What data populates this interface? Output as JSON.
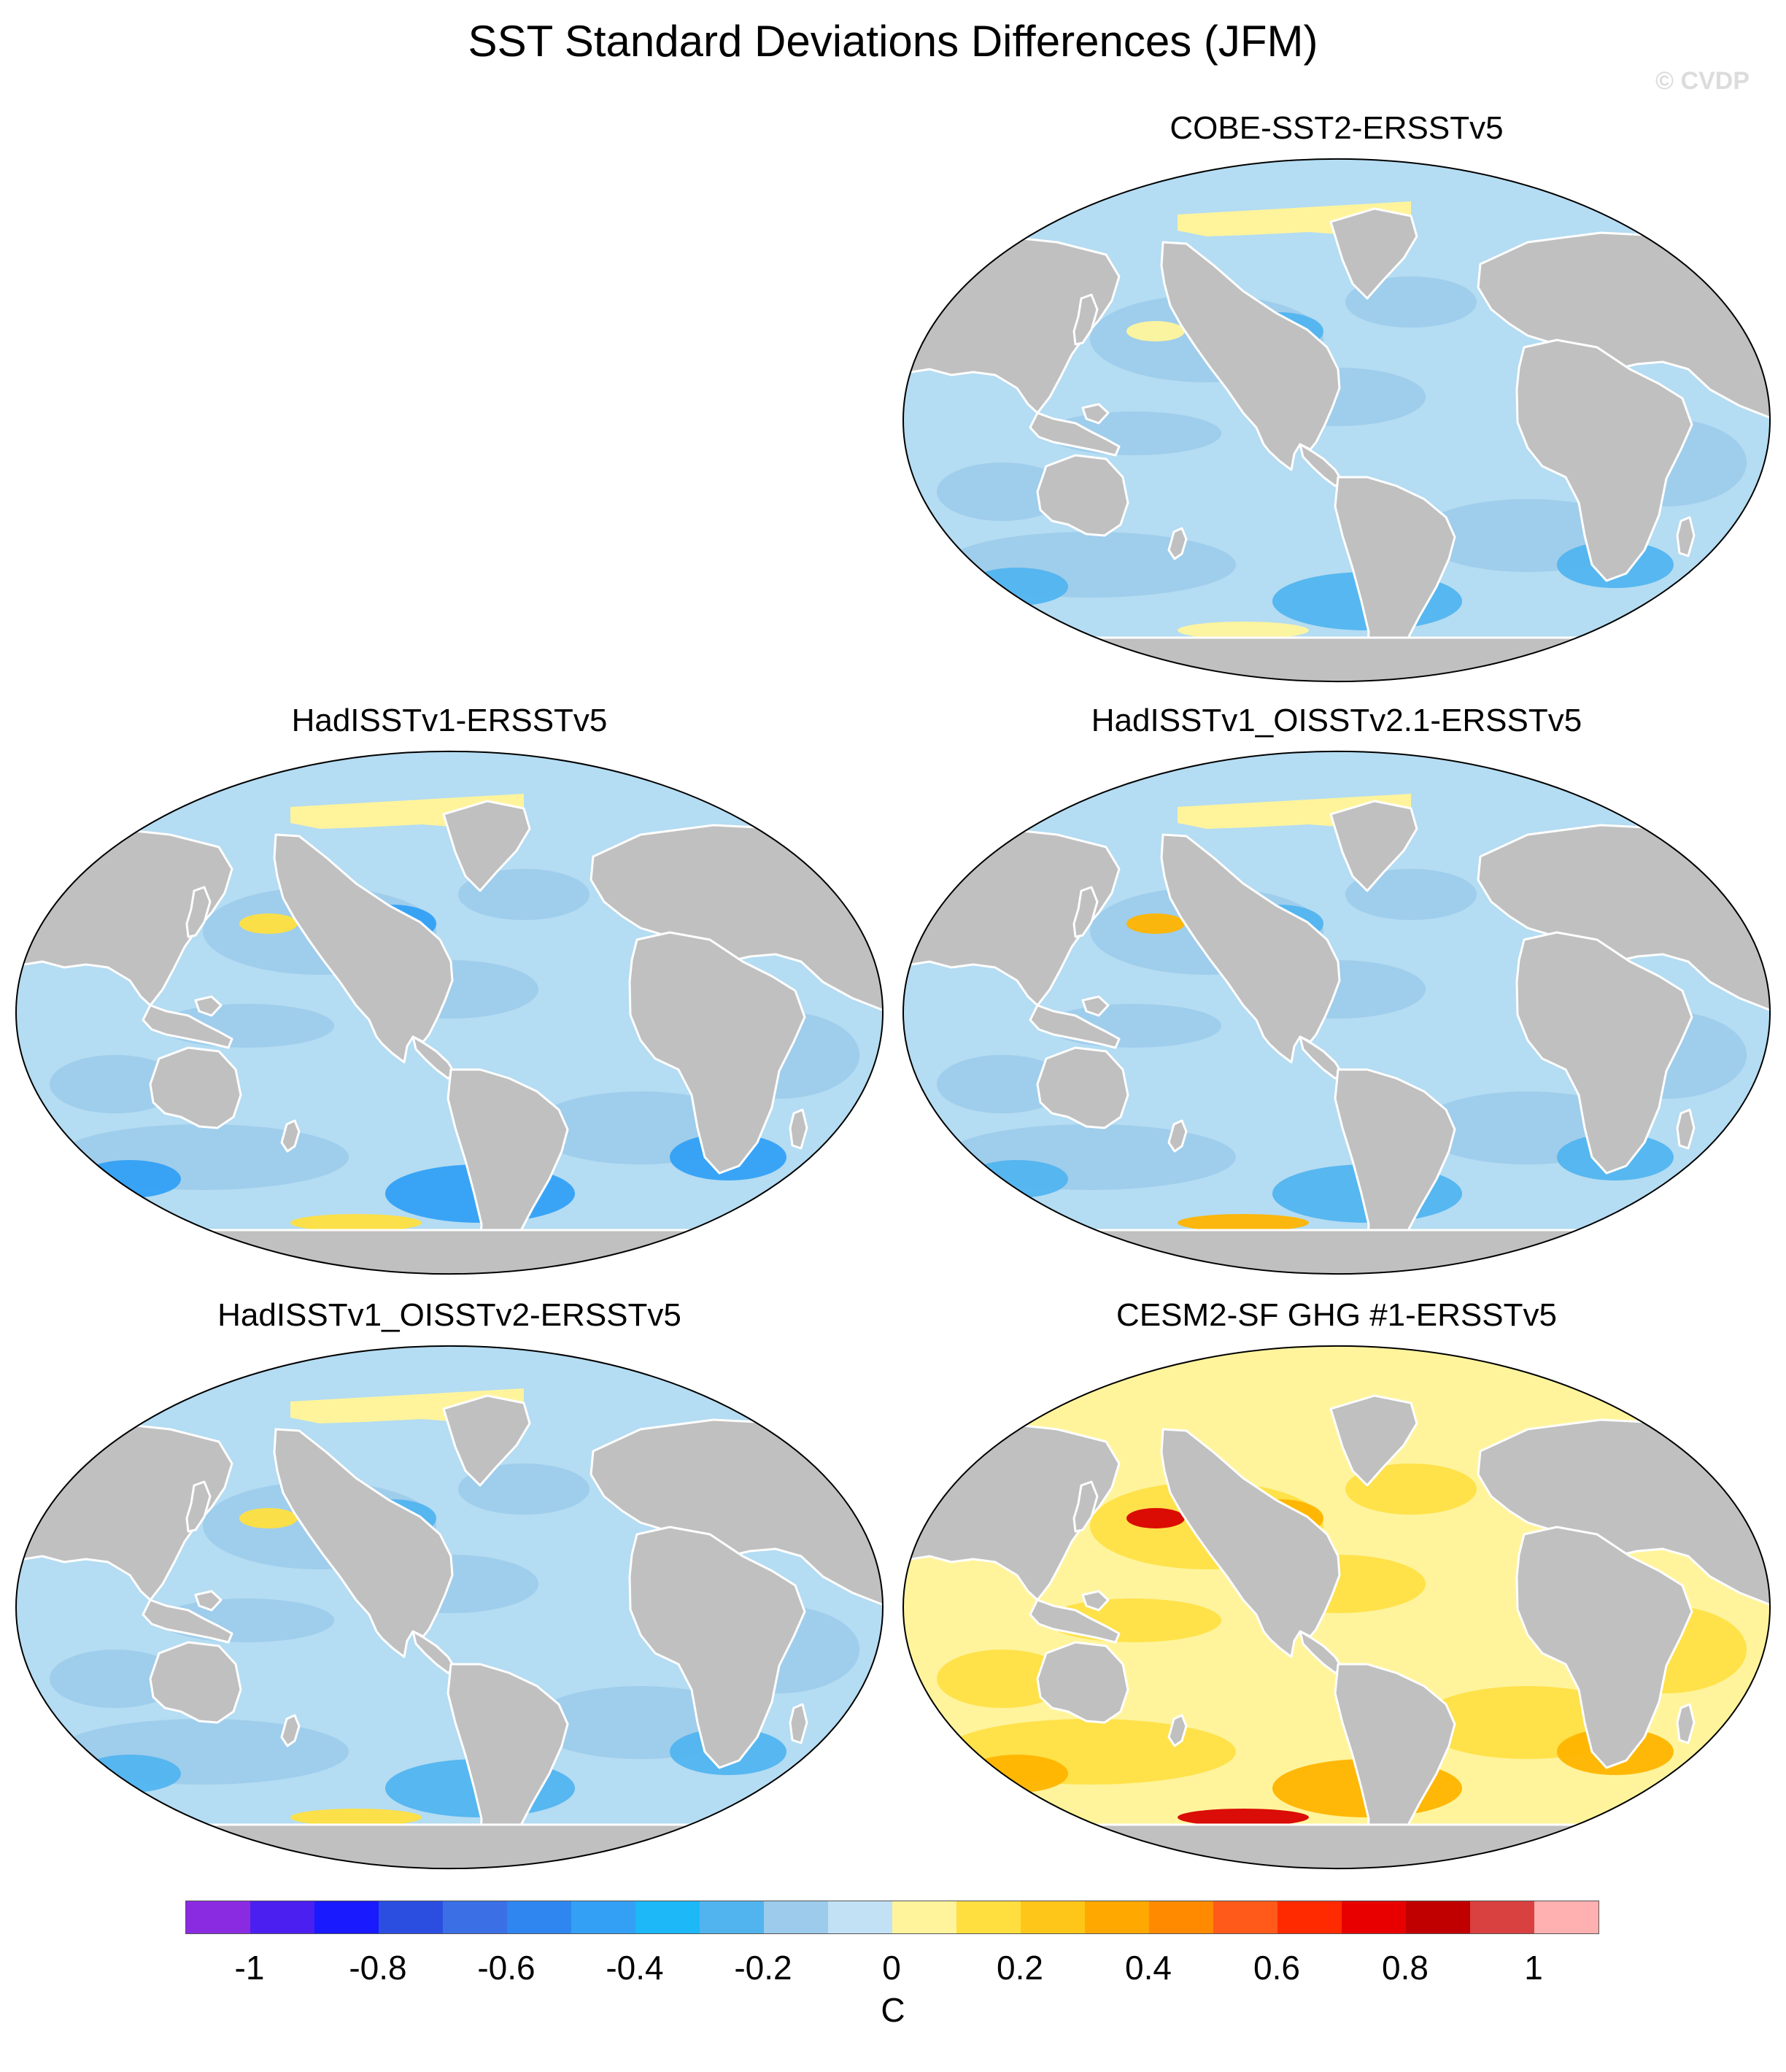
{
  "title": "SST Standard Deviations Differences (JFM)",
  "watermark": "© CVDP",
  "panels": [
    {
      "title": "COBE-SST2-ERSSTv5",
      "row": 0,
      "col": 1,
      "ocean": "#b4dcf2",
      "patch": "#9ccbeb",
      "blob": "#52b4ef",
      "warm": "#fff49c"
    },
    {
      "title": "HadISSTv1-ERSSTv5",
      "row": 1,
      "col": 0,
      "ocean": "#b4dcf2",
      "patch": "#9ccbeb",
      "blob": "#33a0f5",
      "warm": "#ffdf40"
    },
    {
      "title": "HadISSTv1_OISSTv2.1-ERSSTv5",
      "row": 1,
      "col": 1,
      "ocean": "#b4dcf2",
      "patch": "#9ccbeb",
      "blob": "#52b4ef",
      "warm": "#ffb400"
    },
    {
      "title": "HadISSTv1_OISSTv2-ERSSTv5",
      "row": 2,
      "col": 0,
      "ocean": "#b4dcf2",
      "patch": "#9ccbeb",
      "blob": "#52b4ef",
      "warm": "#ffdf40"
    },
    {
      "title": "CESM2-SF GHG #1-ERSSTv5",
      "row": 2,
      "col": 1,
      "ocean": "#fff49c",
      "patch": "#ffdf40",
      "blob": "#ffb400",
      "warm": "#d80000"
    }
  ],
  "colorbar": {
    "colors": [
      "#8a2be2",
      "#4b1ff0",
      "#1a1aff",
      "#2b4ee0",
      "#3a6fe6",
      "#2f86f0",
      "#33a0f5",
      "#1cb8f7",
      "#52b4ef",
      "#9ccbeb",
      "#c3e1f5",
      "#fff49c",
      "#ffdf40",
      "#ffc61a",
      "#ffa800",
      "#ff8a00",
      "#ff5a1a",
      "#ff2a00",
      "#e80000",
      "#c00000",
      "#d94040",
      "#ffb0b0"
    ],
    "ticks": [
      "-1",
      "-0.8",
      "-0.6",
      "-0.4",
      "-0.2",
      "0",
      "0.2",
      "0.4",
      "0.6",
      "0.8",
      "1"
    ],
    "units": "C"
  }
}
